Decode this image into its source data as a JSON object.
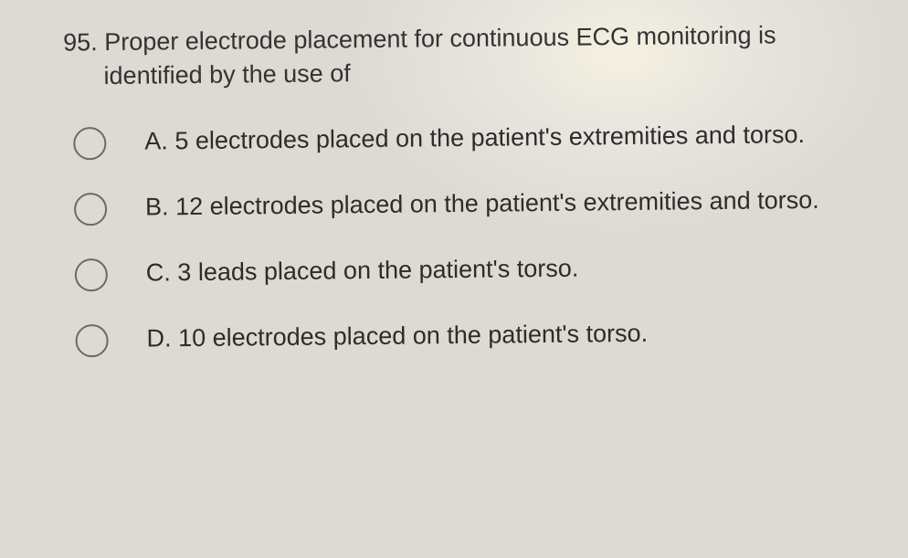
{
  "question": {
    "number": "95.",
    "text": "Proper electrode placement for continuous ECG monitoring is identified by the use of"
  },
  "options": [
    {
      "letter": "A.",
      "text": "5 electrodes placed on the patient's extremities and torso."
    },
    {
      "letter": "B.",
      "text": "12 electrodes placed on the patient's extremities and torso."
    },
    {
      "letter": "C.",
      "text": "3 leads placed on the patient's torso."
    },
    {
      "letter": "D.",
      "text": "10 electrodes placed on the patient's torso."
    }
  ],
  "style": {
    "text_color": "#2a2a2a",
    "radio_border_color": "#6a6a6a",
    "font_size_pt": 20
  }
}
